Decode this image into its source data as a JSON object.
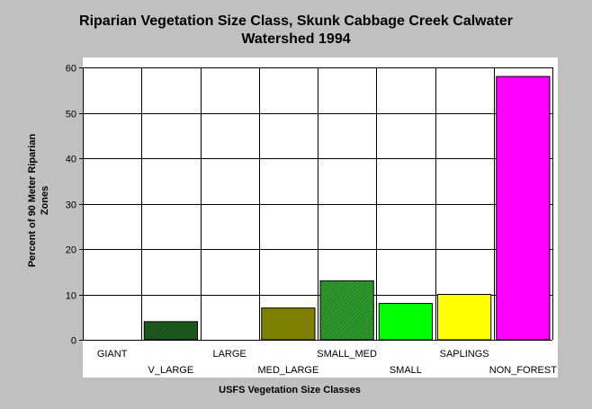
{
  "chart_data": {
    "type": "bar",
    "title_lines": [
      "Riparian Vegetation Size Class, Skunk Cabbage Creek Calwater",
      "Watershed 1994"
    ],
    "xlabel": "USFS Vegetation Size Classes",
    "ylabel_lines": [
      "Percent of 90 Meter Riparian",
      "Zones"
    ],
    "categories": [
      "GIANT",
      "V_LARGE",
      "LARGE",
      "MED_LARGE",
      "SMALL_MED",
      "SMALL",
      "SAPLINGS",
      "NON_FOREST"
    ],
    "values": [
      0,
      4,
      0,
      7,
      13,
      8,
      10,
      58
    ],
    "colors": [
      "#ffffff",
      "#1e5c1e",
      "#ffffff",
      "#808000",
      "#2e9a2e",
      "#00ff00",
      "#ffff00",
      "#ff00ff"
    ],
    "hatched": [
      false,
      true,
      false,
      false,
      true,
      false,
      false,
      false
    ],
    "ylim": [
      0,
      60
    ],
    "yticks": [
      0,
      10,
      20,
      30,
      40,
      50,
      60
    ],
    "grid": true,
    "legend": "none"
  }
}
